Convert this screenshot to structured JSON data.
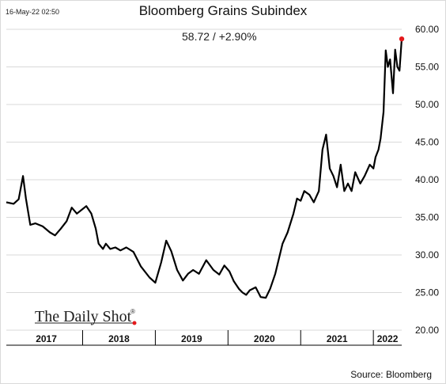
{
  "timestamp": "16-May-22 02:50",
  "last_value_text": "58.72  /  +2.90%",
  "source": "Source: Bloomberg",
  "brand": "The Daily Shot",
  "brand_mark": "®",
  "colors": {
    "line": "#000000",
    "marker": "#e41a1c",
    "grid": "#d9d9d9"
  },
  "chart_data": {
    "type": "line",
    "title": "Bloomberg Grains Subindex",
    "xlabel": "",
    "ylabel": "",
    "ylim": [
      20,
      60
    ],
    "yticks": [
      "20.00",
      "25.00",
      "30.00",
      "35.00",
      "40.00",
      "45.00",
      "50.00",
      "55.00",
      "60.00"
    ],
    "xticks": [
      "2017",
      "2018",
      "2019",
      "2020",
      "2021",
      "2022"
    ],
    "x_range": [
      2016.95,
      2022.39
    ],
    "grid": true,
    "series": [
      {
        "x": [
          2016.95,
          2017.05,
          2017.12,
          2017.18,
          2017.22,
          2017.28,
          2017.35,
          2017.45,
          2017.55,
          2017.62,
          2017.7,
          2017.78,
          2017.85,
          2017.92,
          2018.0,
          2018.05,
          2018.12,
          2018.18,
          2018.22,
          2018.28,
          2018.32,
          2018.38,
          2018.45,
          2018.52,
          2018.6,
          2018.7,
          2018.8,
          2018.92,
          2019.0,
          2019.08,
          2019.15,
          2019.22,
          2019.3,
          2019.38,
          2019.45,
          2019.52,
          2019.6,
          2019.7,
          2019.8,
          2019.88,
          2019.95,
          2020.02,
          2020.08,
          2020.15,
          2020.2,
          2020.25,
          2020.3,
          2020.38,
          2020.45,
          2020.52,
          2020.58,
          2020.65,
          2020.7,
          2020.75,
          2020.82,
          2020.9,
          2020.95,
          2021.0,
          2021.05,
          2021.12,
          2021.18,
          2021.25,
          2021.3,
          2021.35,
          2021.4,
          2021.45,
          2021.5,
          2021.55,
          2021.6,
          2021.65,
          2021.7,
          2021.75,
          2021.82,
          2021.88,
          2021.95,
          2022.0,
          2022.03,
          2022.07,
          2022.1,
          2022.14,
          2022.17,
          2022.2,
          2022.23,
          2022.27,
          2022.3,
          2022.33,
          2022.36,
          2022.39
        ],
        "values": [
          37.0,
          36.8,
          37.4,
          40.5,
          37.5,
          34.0,
          34.2,
          33.8,
          33.0,
          32.6,
          33.5,
          34.5,
          36.3,
          35.5,
          36.1,
          36.5,
          35.5,
          33.5,
          31.5,
          30.8,
          31.5,
          30.8,
          31.0,
          30.6,
          31.0,
          30.4,
          28.5,
          27.0,
          26.3,
          29.0,
          31.9,
          30.5,
          28.0,
          26.6,
          27.5,
          28.0,
          27.5,
          29.3,
          28.0,
          27.4,
          28.6,
          27.8,
          26.5,
          25.5,
          25.0,
          24.7,
          25.3,
          25.7,
          24.4,
          24.3,
          25.5,
          27.5,
          29.5,
          31.5,
          33.0,
          35.5,
          37.5,
          37.2,
          38.5,
          38.0,
          37.0,
          38.5,
          44.0,
          46.0,
          41.5,
          40.5,
          39.0,
          42.0,
          38.5,
          39.5,
          38.5,
          41.0,
          39.5,
          40.5,
          42.0,
          41.5,
          43.0,
          44.0,
          45.5,
          49.0,
          57.2,
          55.0,
          56.0,
          51.5,
          57.3,
          55.0,
          54.5,
          58.72
        ]
      }
    ]
  }
}
